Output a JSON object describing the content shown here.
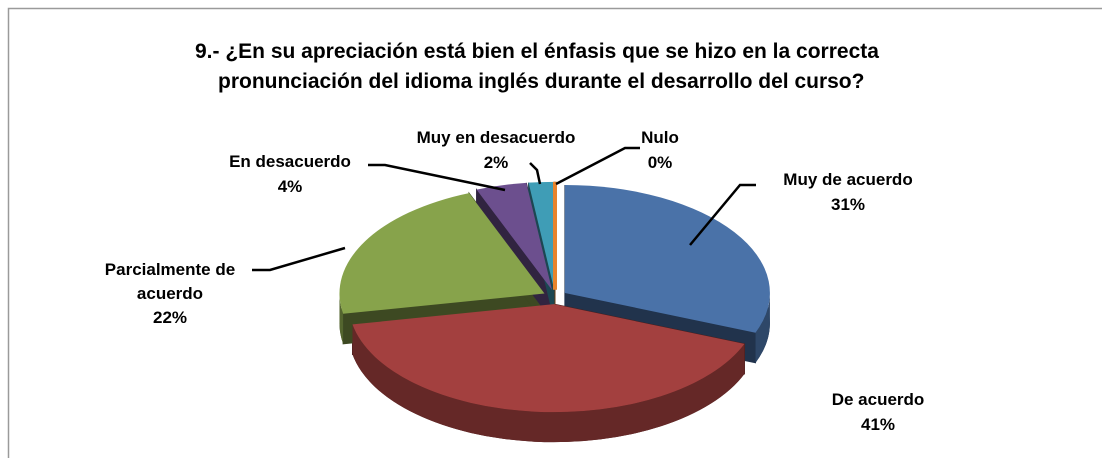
{
  "chart_data": {
    "type": "pie",
    "title": [
      "9.-     ¿En su apreciación está bien el énfasis que se hizo en la correcta",
      "pronunciación del idioma inglés durante el desarrollo del curso?"
    ],
    "categories": [
      "Muy de acuerdo",
      "De acuerdo",
      "Parcialmente de acuerdo",
      "En desacuerdo",
      "Muy en desacuerdo",
      "Nulo"
    ],
    "values": [
      31,
      41,
      22,
      4,
      2,
      0
    ],
    "value_labels": [
      "31%",
      "41%",
      "22%",
      "4%",
      "2%",
      "0%"
    ],
    "colors": [
      "#4a72a8",
      "#a3403f",
      "#87a34b",
      "#6c4f8e",
      "#3f9db6",
      "#e8832b"
    ],
    "exploded": true,
    "three_d": true
  }
}
